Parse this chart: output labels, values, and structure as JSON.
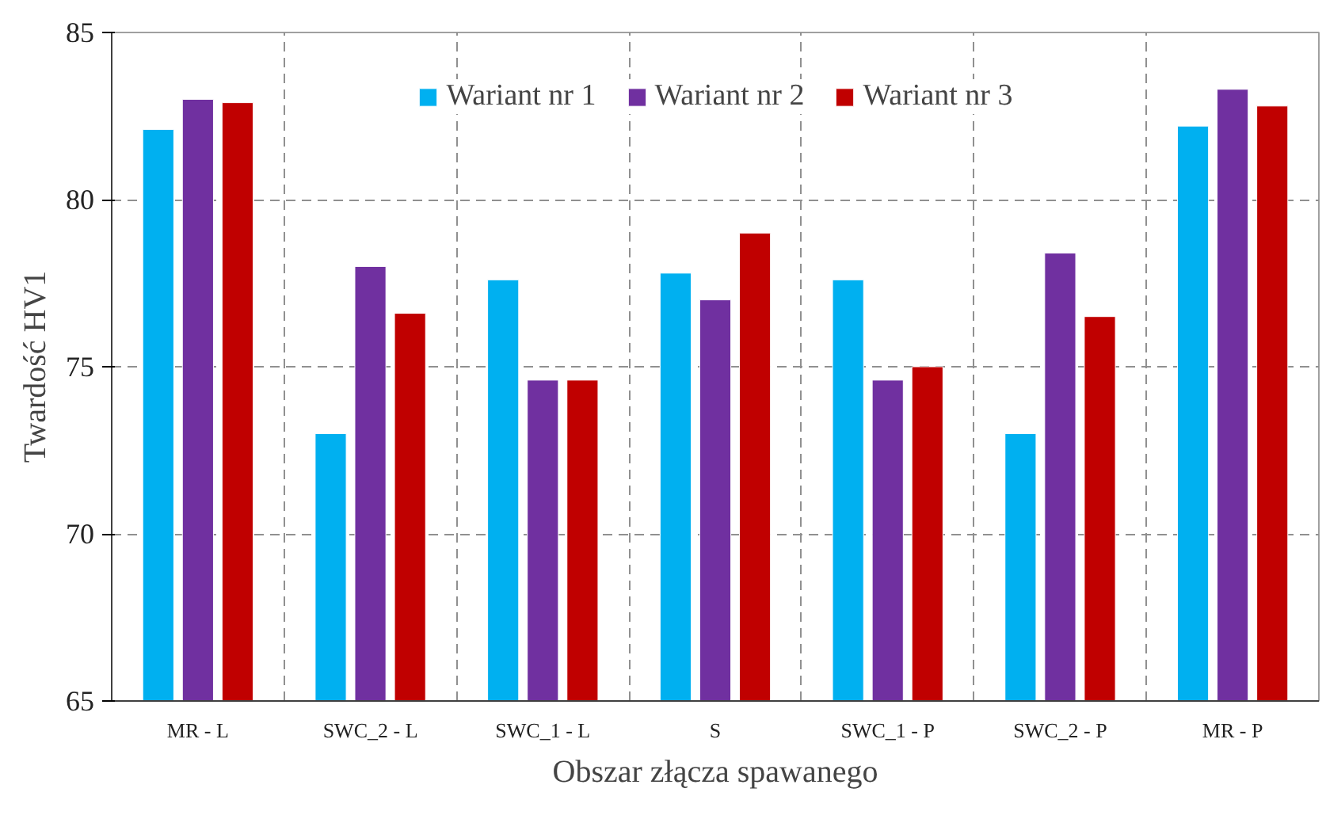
{
  "chart_data": {
    "type": "bar",
    "xlabel": "Obszar złącza spawanego",
    "ylabel": "Twardość HV1",
    "categories": [
      "MR - L",
      "SWC_2 - L",
      "SWC_1 - L",
      "S",
      "SWC_1 - P",
      "SWC_2 - P",
      "MR - P"
    ],
    "series": [
      {
        "name": "Wariant nr 1",
        "color": "#00b0f0",
        "values": [
          82.1,
          73.0,
          77.6,
          77.8,
          77.6,
          73.0,
          82.2
        ]
      },
      {
        "name": "Wariant nr 2",
        "color": "#7030a0",
        "values": [
          83.0,
          78.0,
          74.6,
          77.0,
          74.6,
          78.4,
          83.3
        ]
      },
      {
        "name": "Wariant nr 3",
        "color": "#c00000",
        "values": [
          82.9,
          76.6,
          74.6,
          79.0,
          75.0,
          76.5,
          82.8
        ]
      }
    ],
    "ylim": [
      65,
      85
    ],
    "yticks": [
      65,
      70,
      75,
      80,
      85
    ],
    "grid": true,
    "legend": "top"
  }
}
